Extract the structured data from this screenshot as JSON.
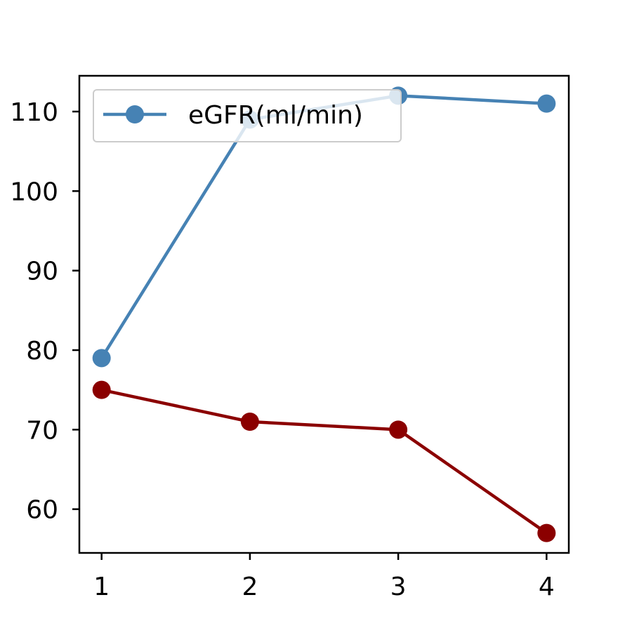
{
  "chart_data": {
    "type": "line",
    "x": [
      1,
      2,
      3,
      4
    ],
    "xlim": [
      0.85,
      4.15
    ],
    "ylim": [
      54.5,
      114.5
    ],
    "x_ticks": [
      1,
      2,
      3,
      4
    ],
    "y_ticks": [
      60,
      70,
      80,
      90,
      100,
      110
    ],
    "grid": false,
    "legend_position": "upper left",
    "title": "",
    "xlabel": "",
    "ylabel": "",
    "series": [
      {
        "name": "eGFR(ml/min)",
        "color": "#4682b4",
        "marker": "circle",
        "values": [
          79,
          109,
          112,
          111
        ]
      },
      {
        "color": "#8b0000",
        "marker": "circle",
        "values": [
          75,
          71,
          70,
          57
        ]
      }
    ]
  }
}
